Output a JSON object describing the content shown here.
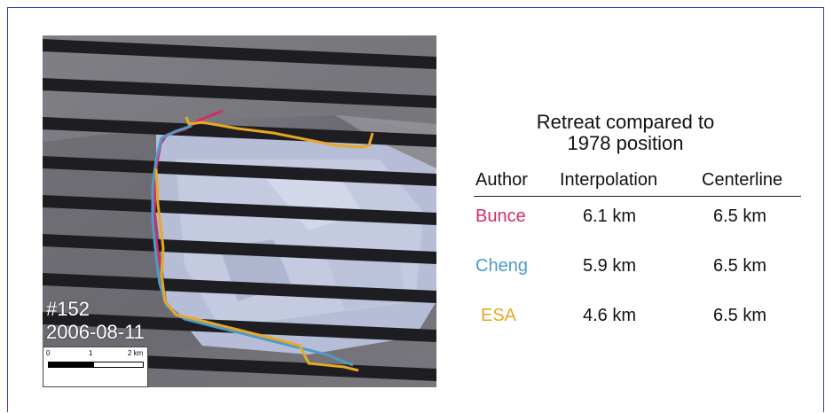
{
  "figure": {
    "map": {
      "id_label": "#152",
      "date_label": "2006-08-11",
      "scale": {
        "ticks": [
          "0",
          "1",
          "2 km"
        ]
      },
      "line_colors": {
        "Bunce": "#d62a6a",
        "Cheng": "#4f9ac8",
        "ESA": "#e8a825"
      }
    },
    "table": {
      "title_line1": "Retreat compared to",
      "title_line2": "1978 position",
      "headers": [
        "Author",
        "Interpolation",
        "Centerline"
      ],
      "rows": [
        {
          "author": "Bunce",
          "interpolation": "6.1 km",
          "centerline": "6.5 km",
          "color": "#d62a6a"
        },
        {
          "author": "Cheng",
          "interpolation": "5.9 km",
          "centerline": "6.5 km",
          "color": "#4f9ac8"
        },
        {
          "author": "ESA",
          "interpolation": "4.6 km",
          "centerline": "6.5 km",
          "color": "#e8a825"
        }
      ]
    }
  }
}
